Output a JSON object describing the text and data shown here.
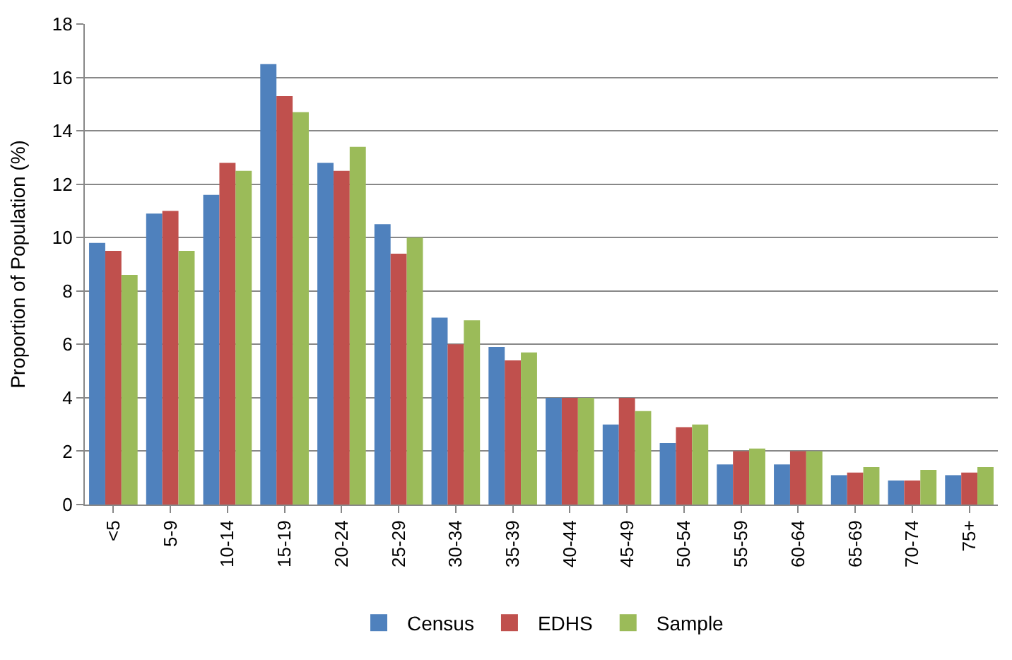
{
  "chart_data": {
    "type": "bar",
    "ylabel": "Proportion of Population (%)",
    "categories": [
      "<5",
      "5-9",
      "10-14",
      "15-19",
      "20-24",
      "25-29",
      "30-34",
      "35-39",
      "40-44",
      "45-49",
      "50-54",
      "55-59",
      "60-64",
      "65-69",
      "70-74",
      "75+"
    ],
    "series": [
      {
        "name": "Census",
        "color": "#4f81bd",
        "values": [
          9.8,
          10.9,
          11.6,
          16.5,
          12.8,
          10.5,
          7.0,
          5.9,
          4.0,
          3.0,
          2.3,
          1.5,
          1.5,
          1.1,
          0.9,
          1.1
        ]
      },
      {
        "name": "EDHS",
        "color": "#c0504d",
        "values": [
          9.5,
          11.0,
          12.8,
          15.3,
          12.5,
          9.4,
          6.0,
          5.4,
          4.0,
          4.0,
          2.9,
          2.0,
          2.0,
          1.2,
          0.9,
          1.2
        ]
      },
      {
        "name": "Sample",
        "color": "#9bbb59",
        "values": [
          8.6,
          9.5,
          12.5,
          14.7,
          13.4,
          10.0,
          6.9,
          5.7,
          4.0,
          3.5,
          3.0,
          2.1,
          2.0,
          1.4,
          1.3,
          1.4
        ]
      }
    ],
    "ylim": [
      0,
      18
    ],
    "yticks": [
      0,
      2,
      4,
      6,
      8,
      10,
      12,
      14,
      16,
      18
    ],
    "grid": "y",
    "legend": "bottom"
  }
}
